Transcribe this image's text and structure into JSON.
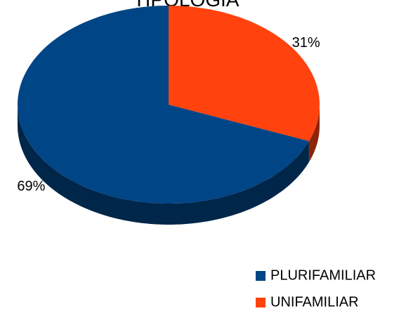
{
  "chart_data": {
    "type": "pie",
    "title": "TIPOLOGIA",
    "categories": [
      "PLURIFAMILIAR",
      "UNIFAMILIAR"
    ],
    "values": [
      69,
      31
    ],
    "value_labels": [
      "69%",
      "31%"
    ],
    "colors": [
      "#004586",
      "#ff420e"
    ],
    "legend": "bottom-right"
  }
}
